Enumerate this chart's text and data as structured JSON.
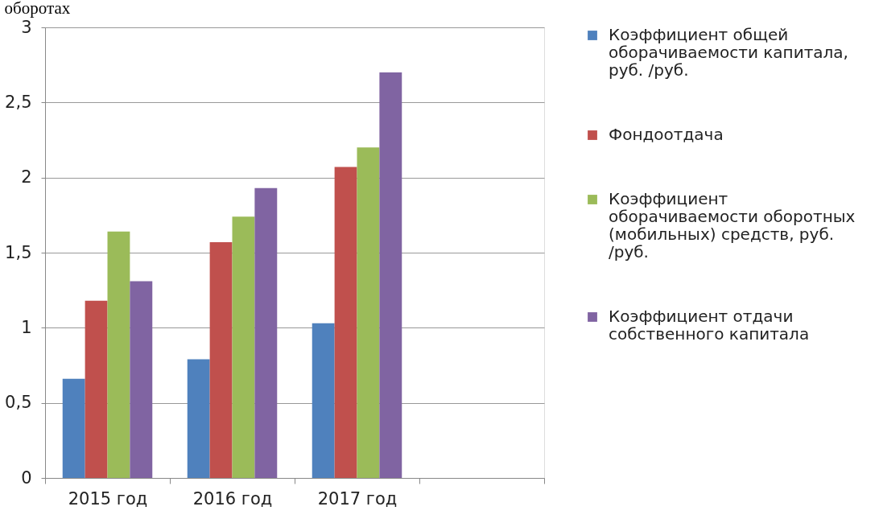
{
  "chart_data": {
    "type": "bar",
    "title": "оборотах",
    "categories": [
      "2015 год",
      "2016 год",
      "2017 год",
      null
    ],
    "series": [
      {
        "name": "Коэффициент общей оборачиваемости капитала, руб. /руб.",
        "color": "#4f81bd",
        "values": [
          0.66,
          0.79,
          1.03,
          null
        ]
      },
      {
        "name": "Фондоотдача",
        "color": "#c0504d",
        "values": [
          1.18,
          1.57,
          2.07,
          null
        ]
      },
      {
        "name": "Коэффициент оборачиваемости оборотных (мобильных) средств, руб. /руб.",
        "color": "#9bbb59",
        "values": [
          1.64,
          1.74,
          2.2,
          null
        ]
      },
      {
        "name": "Коэффициент отдачи собственного капитала",
        "color": "#8064a2",
        "values": [
          1.31,
          1.93,
          2.7,
          null
        ]
      }
    ],
    "ylim": [
      0,
      3
    ],
    "yticks": [
      0,
      {
        "value": 0.5,
        "label": "0,5"
      },
      1,
      {
        "value": 1.5,
        "label": "1,5"
      },
      2,
      {
        "value": 2.5,
        "label": "2,5"
      },
      3
    ],
    "grid": "y",
    "legend": "right"
  }
}
